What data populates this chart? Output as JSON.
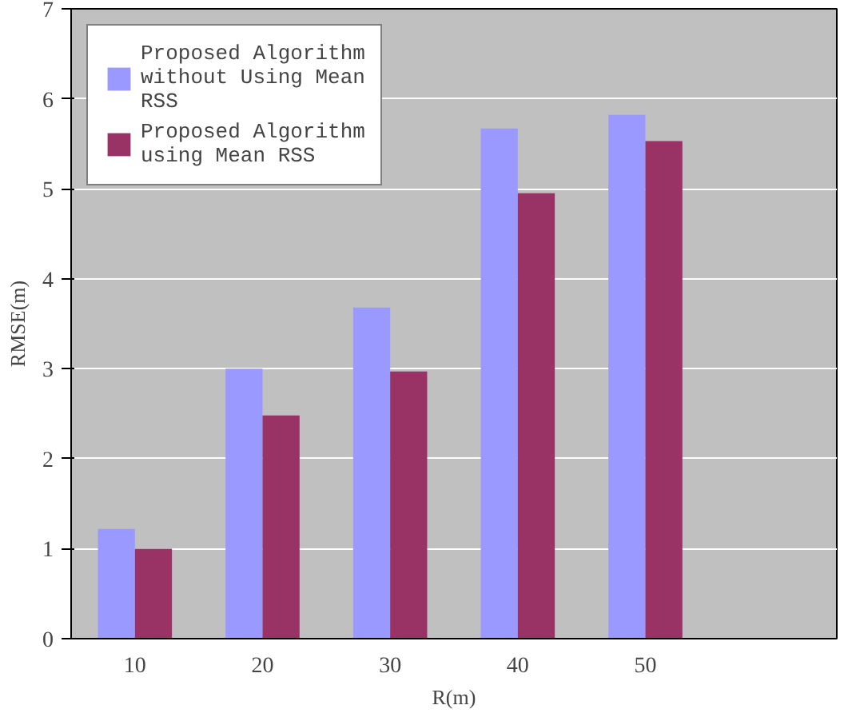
{
  "chart_data": {
    "type": "bar",
    "xlabel": "R(m)",
    "ylabel": "RMSE(m)",
    "categories": [
      "10",
      "20",
      "30",
      "40",
      "50",
      null
    ],
    "series": [
      {
        "name": "Proposed Algorithm without Using Mean RSS",
        "color": "#9999ff",
        "values": [
          1.22,
          3.0,
          3.68,
          5.67,
          5.82,
          null
        ]
      },
      {
        "name": "Proposed Algorithm using Mean RSS",
        "color": "#993366",
        "values": [
          1.0,
          2.48,
          2.97,
          4.95,
          5.53,
          null
        ]
      }
    ],
    "ylim": [
      0,
      7
    ],
    "yticks": [
      0,
      1,
      2,
      3,
      4,
      5,
      6,
      7
    ],
    "grid": "y",
    "legend": "top left"
  }
}
